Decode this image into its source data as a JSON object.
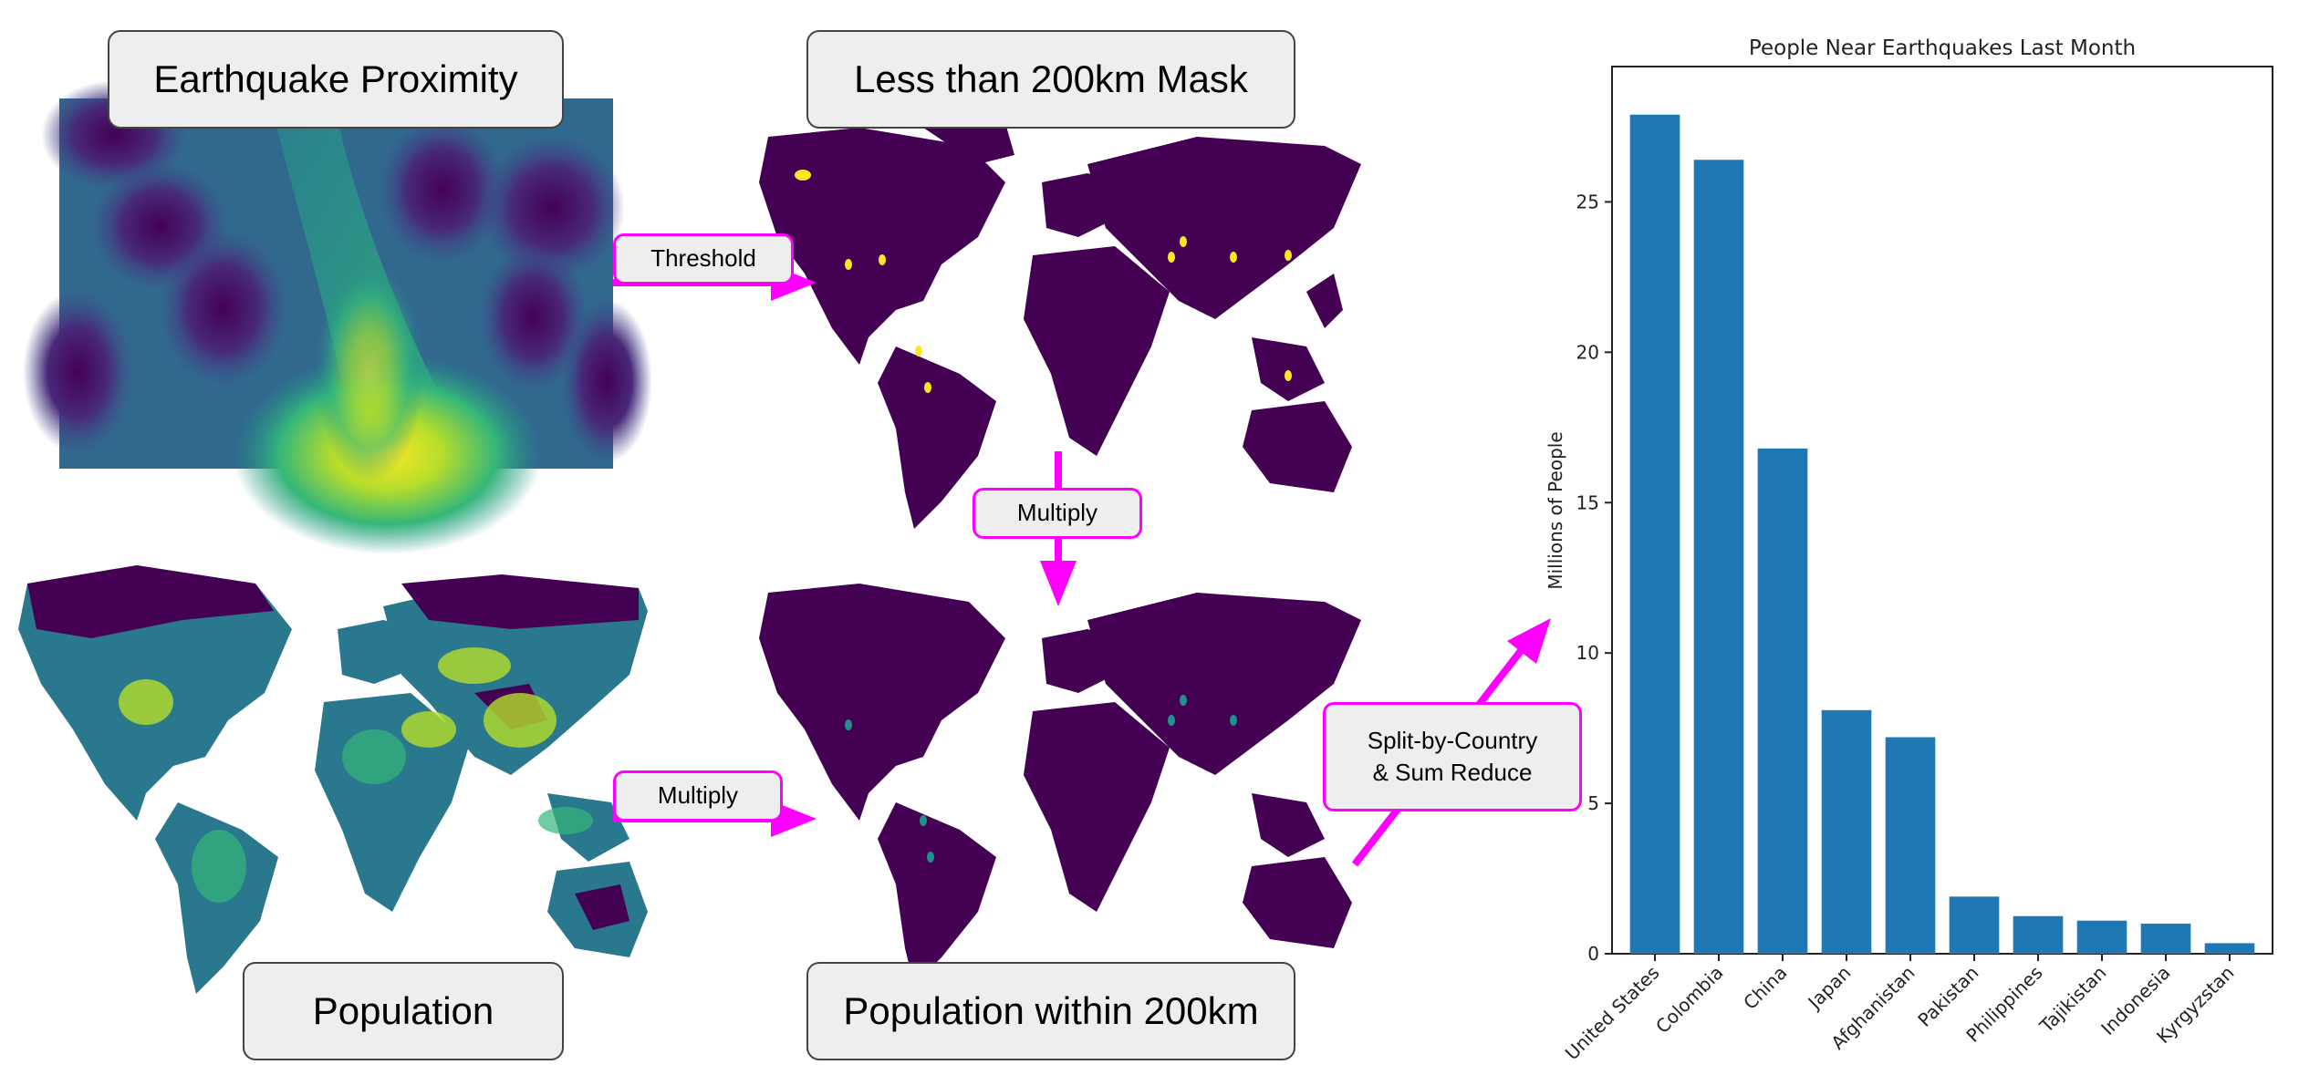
{
  "panels": {
    "proximity_title": "Earthquake Proximity",
    "mask_title": "Less than 200km Mask",
    "population_title": "Population",
    "result_title": "Population within 200km"
  },
  "operations": {
    "threshold": "Threshold",
    "multiply_vertical": "Multiply",
    "multiply_horizontal": "Multiply",
    "split_reduce_line1": "Split-by-Country",
    "split_reduce_line2": "& Sum Reduce"
  },
  "colors": {
    "arrow": "#ff00ff",
    "map_dark": "#440154",
    "map_green": "#21918c",
    "map_yellow": "#fde725",
    "bar": "#1f77b4"
  },
  "chart_data": {
    "type": "bar",
    "title": "People Near Earthquakes Last Month",
    "xlabel": "",
    "ylabel": "Millions of People",
    "categories": [
      "United States",
      "Colombia",
      "China",
      "Japan",
      "Afghanistan",
      "Pakistan",
      "Philippines",
      "Tajikistan",
      "Indonesia",
      "Kyrgyzstan"
    ],
    "values": [
      27.9,
      26.4,
      16.8,
      8.1,
      7.2,
      1.9,
      1.25,
      1.1,
      1.0,
      0.35
    ],
    "ylim": [
      0,
      29.5
    ],
    "yticks": [
      0,
      5,
      10,
      15,
      20,
      25
    ],
    "grid": false
  }
}
